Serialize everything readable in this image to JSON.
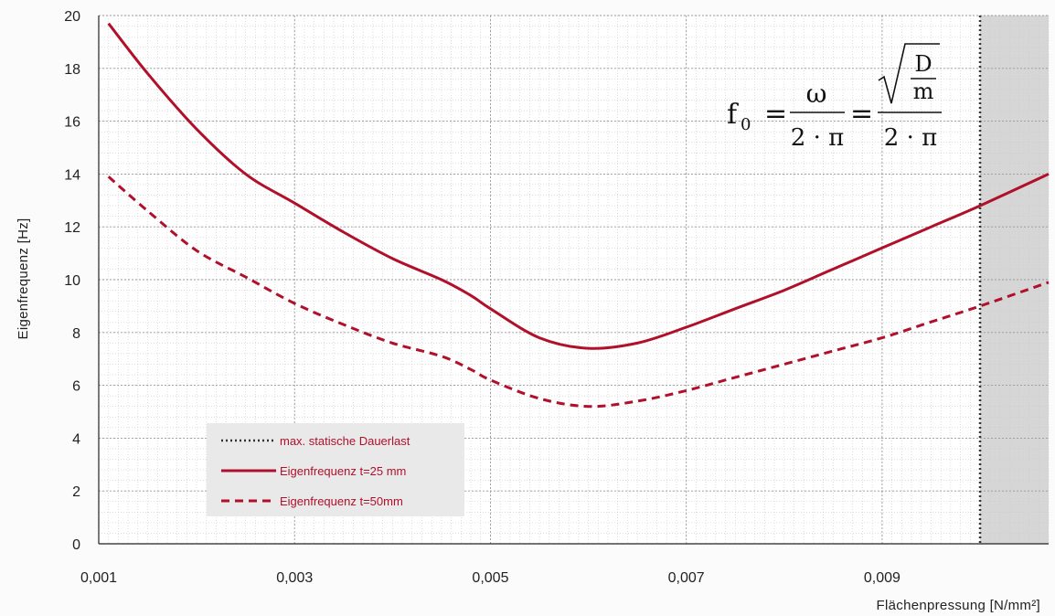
{
  "chart_data": {
    "type": "line",
    "title": "",
    "xlabel": "Flächenpressung [N/mm²]",
    "ylabel": "Eigenfrequenz [Hz]",
    "xlim": [
      0.001,
      0.0107
    ],
    "ylim": [
      0,
      20
    ],
    "xticks": [
      0.001,
      0.003,
      0.005,
      0.007,
      0.009
    ],
    "xtick_labels": [
      "0,001",
      "0,003",
      "0,005",
      "0,007",
      "0,009"
    ],
    "yticks": [
      0,
      2,
      4,
      6,
      8,
      10,
      12,
      14,
      16,
      18,
      20
    ],
    "ytick_labels": [
      "0",
      "2",
      "4",
      "6",
      "8",
      "10",
      "12",
      "14",
      "16",
      "18",
      "20"
    ],
    "grid": true,
    "legend_position": "bottom-left",
    "shaded_region": {
      "x_from": 0.01,
      "x_to": 0.0107,
      "color": "#d6d6d6"
    },
    "vline": {
      "x": 0.01,
      "style": "dotted",
      "color": "#333333"
    },
    "series": [
      {
        "name": "Eigenfrequenz t=25 mm",
        "style": "solid",
        "color": "#b0102a",
        "x": [
          0.0011,
          0.0015,
          0.002,
          0.0025,
          0.003,
          0.0035,
          0.004,
          0.0045,
          0.0048,
          0.005,
          0.0055,
          0.006,
          0.0065,
          0.007,
          0.0075,
          0.008,
          0.0085,
          0.009,
          0.0095,
          0.01,
          0.0107
        ],
        "y": [
          19.7,
          17.8,
          15.7,
          14.0,
          12.9,
          11.8,
          10.8,
          10.0,
          9.4,
          8.9,
          7.8,
          7.4,
          7.6,
          8.2,
          8.9,
          9.6,
          10.4,
          11.2,
          12.0,
          12.8,
          14.0
        ]
      },
      {
        "name": "Eigenfrequenz t=50mm",
        "style": "dashed",
        "color": "#b0102a",
        "x": [
          0.0011,
          0.0015,
          0.002,
          0.0025,
          0.003,
          0.0035,
          0.004,
          0.0045,
          0.0048,
          0.005,
          0.0055,
          0.006,
          0.0065,
          0.007,
          0.0075,
          0.008,
          0.0085,
          0.009,
          0.0095,
          0.01,
          0.0107
        ],
        "y": [
          13.9,
          12.6,
          11.1,
          10.1,
          9.1,
          8.3,
          7.6,
          7.1,
          6.6,
          6.2,
          5.5,
          5.2,
          5.4,
          5.8,
          6.3,
          6.8,
          7.3,
          7.8,
          8.4,
          9.0,
          9.9
        ]
      }
    ],
    "legend": [
      {
        "label": "max. statische Dauerlast",
        "style": "dotted",
        "color": "#333333"
      },
      {
        "label": "Eigenfrequenz t=25 mm",
        "style": "solid",
        "color": "#b0102a"
      },
      {
        "label": "Eigenfrequenz t=50mm",
        "style": "dashed",
        "color": "#b0102a"
      }
    ],
    "formula": {
      "lhs": "f",
      "lhs_sub": "0",
      "eq": "=",
      "frac1_num": "ω",
      "frac1_den": "2 · π",
      "frac2_num_top": "D",
      "frac2_num_bottom": "m",
      "frac2_den": "2 · π"
    }
  }
}
